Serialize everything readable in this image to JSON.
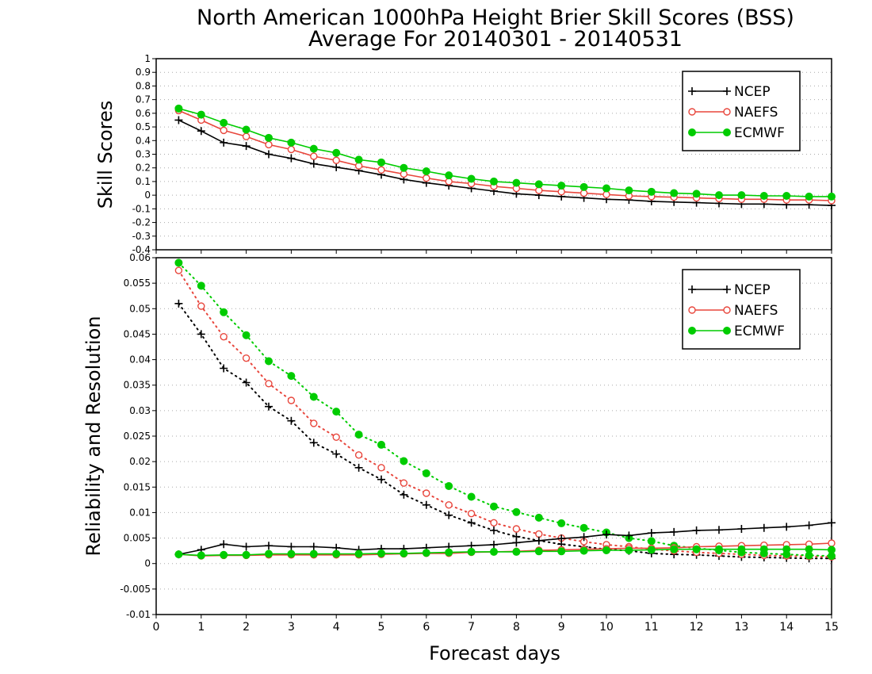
{
  "title_line1": "North American 1000hPa Height Brier Skill Scores (BSS)",
  "title_line2": "Average For 20140301 - 20140531",
  "xlabel": "Forecast days",
  "colors": {
    "NCEP": "#000000",
    "NAEFS": "#e8463c",
    "ECMWF": "#00cc00"
  },
  "chart_data": [
    {
      "type": "line",
      "ylabel": "Skill Scores",
      "ylim": [
        -0.4,
        1
      ],
      "xlim": [
        0,
        15
      ],
      "grid": true,
      "legend_position": "top-right",
      "yticks": [
        "-0.4",
        "-0.3",
        "-0.2",
        "-0.1",
        "0",
        "0.1",
        "0.2",
        "0.3",
        "0.4",
        "0.5",
        "0.6",
        "0.7",
        "0.8",
        "0.9",
        "1"
      ],
      "x": [
        0.5,
        1,
        1.5,
        2,
        2.5,
        3,
        3.5,
        4,
        4.5,
        5,
        5.5,
        6,
        6.5,
        7,
        7.5,
        8,
        8.5,
        9,
        9.5,
        10,
        10.5,
        11,
        11.5,
        12,
        12.5,
        13,
        13.5,
        14,
        14.5,
        15
      ],
      "series": [
        {
          "name": "NCEP",
          "marker": "plus",
          "values": [
            0.55,
            0.47,
            0.385,
            0.36,
            0.3,
            0.27,
            0.23,
            0.205,
            0.18,
            0.15,
            0.115,
            0.09,
            0.07,
            0.05,
            0.03,
            0.01,
            0.0,
            -0.01,
            -0.02,
            -0.03,
            -0.035,
            -0.045,
            -0.05,
            -0.055,
            -0.06,
            -0.065,
            -0.065,
            -0.07,
            -0.07,
            -0.075
          ]
        },
        {
          "name": "NAEFS",
          "marker": "open-circle",
          "values": [
            0.62,
            0.55,
            0.475,
            0.43,
            0.37,
            0.335,
            0.285,
            0.255,
            0.215,
            0.185,
            0.155,
            0.125,
            0.1,
            0.085,
            0.065,
            0.05,
            0.035,
            0.025,
            0.015,
            0.005,
            -0.005,
            -0.01,
            -0.015,
            -0.02,
            -0.025,
            -0.03,
            -0.03,
            -0.035,
            -0.035,
            -0.04
          ]
        },
        {
          "name": "ECMWF",
          "marker": "filled-circle",
          "values": [
            0.635,
            0.59,
            0.53,
            0.48,
            0.42,
            0.385,
            0.34,
            0.31,
            0.26,
            0.24,
            0.2,
            0.175,
            0.145,
            0.12,
            0.1,
            0.09,
            0.08,
            0.07,
            0.06,
            0.05,
            0.035,
            0.025,
            0.015,
            0.01,
            0.0,
            0.0,
            -0.005,
            -0.005,
            -0.01,
            -0.01
          ]
        }
      ]
    },
    {
      "type": "line",
      "ylabel": "Reliability and Resolution",
      "ylim": [
        -0.01,
        0.06
      ],
      "xlim": [
        0,
        15
      ],
      "grid": true,
      "legend_position": "top-right",
      "yticks": [
        "-0.01",
        "-0.005",
        "0",
        "0.005",
        "0.01",
        "0.015",
        "0.02",
        "0.025",
        "0.03",
        "0.035",
        "0.04",
        "0.045",
        "0.05",
        "0.055",
        "0.06"
      ],
      "xticks": [
        "0",
        "1",
        "2",
        "3",
        "4",
        "5",
        "6",
        "7",
        "8",
        "9",
        "10",
        "11",
        "12",
        "13",
        "14",
        "15"
      ],
      "x": [
        0.5,
        1,
        1.5,
        2,
        2.5,
        3,
        3.5,
        4,
        4.5,
        5,
        5.5,
        6,
        6.5,
        7,
        7.5,
        8,
        8.5,
        9,
        9.5,
        10,
        10.5,
        11,
        11.5,
        12,
        12.5,
        13,
        13.5,
        14,
        14.5,
        15
      ],
      "series": [
        {
          "name": "NCEP",
          "marker": "plus",
          "style": "dotted",
          "component": "resolution",
          "values": [
            0.051,
            0.045,
            0.0383,
            0.0355,
            0.0308,
            0.028,
            0.0237,
            0.0215,
            0.0188,
            0.0165,
            0.0135,
            0.0115,
            0.0095,
            0.008,
            0.0065,
            0.0053,
            0.0045,
            0.0038,
            0.0033,
            0.0028,
            0.0025,
            0.002,
            0.0018,
            0.0017,
            0.0015,
            0.0013,
            0.0012,
            0.0011,
            0.001,
            0.001
          ]
        },
        {
          "name": "NAEFS",
          "marker": "open-circle",
          "style": "dotted",
          "component": "resolution",
          "values": [
            0.0575,
            0.0505,
            0.0445,
            0.0403,
            0.0353,
            0.032,
            0.0275,
            0.0248,
            0.0213,
            0.0188,
            0.0158,
            0.0138,
            0.0115,
            0.0098,
            0.008,
            0.0068,
            0.0058,
            0.005,
            0.0043,
            0.0037,
            0.0033,
            0.0028,
            0.0025,
            0.0022,
            0.002,
            0.0018,
            0.0016,
            0.0015,
            0.0014,
            0.0013
          ]
        },
        {
          "name": "ECMWF",
          "marker": "filled-circle",
          "style": "dotted",
          "component": "resolution",
          "values": [
            0.059,
            0.0545,
            0.0493,
            0.0448,
            0.0397,
            0.0368,
            0.0327,
            0.0298,
            0.0253,
            0.0233,
            0.0201,
            0.0177,
            0.0152,
            0.0131,
            0.0112,
            0.0101,
            0.009,
            0.0079,
            0.007,
            0.0061,
            0.005,
            0.0044,
            0.0035,
            0.003,
            0.0026,
            0.0022,
            0.002,
            0.0018,
            0.0016,
            0.0015
          ]
        },
        {
          "name": "NCEP",
          "marker": "plus",
          "style": "solid",
          "component": "reliability",
          "values": [
            0.0018,
            0.0027,
            0.0038,
            0.0033,
            0.0035,
            0.0033,
            0.0033,
            0.0031,
            0.0027,
            0.0029,
            0.0029,
            0.0031,
            0.0033,
            0.0035,
            0.0037,
            0.0041,
            0.0045,
            0.0049,
            0.0052,
            0.0057,
            0.0055,
            0.006,
            0.0062,
            0.0065,
            0.0066,
            0.0068,
            0.007,
            0.0072,
            0.0075,
            0.008
          ]
        },
        {
          "name": "NAEFS",
          "marker": "open-circle",
          "style": "solid",
          "component": "reliability",
          "values": [
            0.0018,
            0.0015,
            0.0016,
            0.0016,
            0.0017,
            0.0017,
            0.0017,
            0.0017,
            0.0017,
            0.0018,
            0.0019,
            0.002,
            0.002,
            0.0022,
            0.0023,
            0.0024,
            0.0026,
            0.0027,
            0.0028,
            0.0029,
            0.003,
            0.003,
            0.0031,
            0.0033,
            0.0034,
            0.0035,
            0.0036,
            0.0037,
            0.0038,
            0.004
          ]
        },
        {
          "name": "ECMWF",
          "marker": "filled-circle",
          "style": "solid",
          "component": "reliability",
          "values": [
            0.0018,
            0.0016,
            0.0017,
            0.0017,
            0.0019,
            0.0019,
            0.0019,
            0.0019,
            0.0019,
            0.002,
            0.002,
            0.0021,
            0.0022,
            0.0023,
            0.0023,
            0.0023,
            0.0024,
            0.0024,
            0.0025,
            0.0026,
            0.0026,
            0.0027,
            0.0028,
            0.0028,
            0.0028,
            0.0028,
            0.0028,
            0.0028,
            0.0028,
            0.0027
          ]
        }
      ]
    }
  ]
}
